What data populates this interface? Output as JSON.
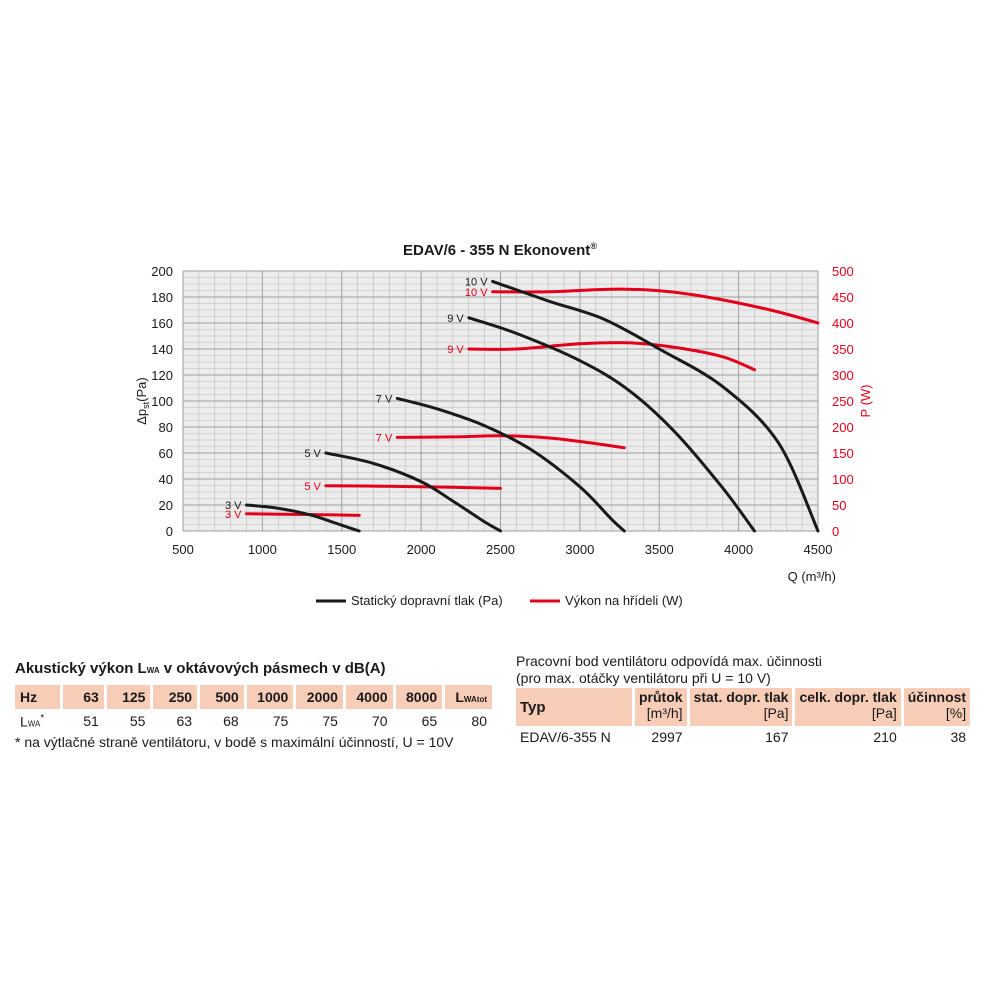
{
  "chart_data": {
    "type": "line",
    "title": "EDAV/6 - 355 N Ekonovent",
    "title_mark": "®",
    "xlabel": "Q (m³/h)",
    "ylabel_left": "Δp",
    "ylabel_left_sub": "st",
    "ylabel_left_unit": "(Pa)",
    "ylabel_right": "P (W)",
    "xlim": [
      500,
      4500
    ],
    "ylim_left": [
      0,
      200
    ],
    "ylim_right": [
      0,
      500
    ],
    "x_ticks": [
      500,
      1000,
      1500,
      2000,
      2500,
      3000,
      3500,
      4000,
      4500
    ],
    "y_left_ticks": [
      0,
      20,
      40,
      60,
      80,
      100,
      120,
      140,
      160,
      180,
      200
    ],
    "y_right_ticks": [
      0,
      50,
      100,
      150,
      200,
      250,
      300,
      350,
      400,
      450,
      500
    ],
    "grid": true,
    "legend_position": "bottom",
    "legend": [
      {
        "label": "Statický dopravní tlak (Pa)",
        "color": "#1a1a1a"
      },
      {
        "label": "Výkon na hřídeli (W)",
        "color": "#e3001b"
      }
    ],
    "pressure_series": [
      {
        "label": "3 V",
        "axis": "left",
        "x": [
          900,
          1100,
          1300,
          1450,
          1560,
          1610
        ],
        "y": [
          20,
          17.5,
          12.5,
          6.5,
          2,
          0
        ]
      },
      {
        "label": "5 V",
        "axis": "left",
        "x": [
          1400,
          1700,
          2000,
          2200,
          2400,
          2500
        ],
        "y": [
          60,
          52,
          38,
          23,
          7,
          0
        ]
      },
      {
        "label": "7 V",
        "axis": "left",
        "x": [
          1850,
          2100,
          2400,
          2700,
          3000,
          3200,
          3280
        ],
        "y": [
          102,
          94,
          81,
          62,
          34,
          9,
          0
        ]
      },
      {
        "label": "9 V",
        "axis": "left",
        "x": [
          2300,
          2600,
          3000,
          3300,
          3600,
          3900,
          4100
        ],
        "y": [
          164,
          152,
          131,
          109,
          76,
          33,
          0
        ]
      },
      {
        "label": "10 V",
        "axis": "left",
        "x": [
          2450,
          2800,
          3150,
          3500,
          3900,
          4250,
          4500
        ],
        "y": [
          192,
          177,
          163,
          140,
          111,
          68,
          0
        ]
      }
    ],
    "power_series": [
      {
        "label": "3 V",
        "axis": "right",
        "x": [
          900,
          1200,
          1450,
          1610
        ],
        "y": [
          33,
          32,
          31,
          30
        ]
      },
      {
        "label": "5 V",
        "axis": "right",
        "x": [
          1400,
          1800,
          2200,
          2500
        ],
        "y": [
          87,
          86,
          84,
          82
        ]
      },
      {
        "label": "7 V",
        "axis": "right",
        "x": [
          1850,
          2200,
          2500,
          2800,
          3100,
          3280
        ],
        "y": [
          180,
          181,
          183,
          179,
          168,
          160
        ]
      },
      {
        "label": "9 V",
        "axis": "right",
        "x": [
          2300,
          2600,
          3000,
          3300,
          3600,
          3900,
          4100
        ],
        "y": [
          350,
          350,
          360,
          362,
          353,
          335,
          310
        ]
      },
      {
        "label": "10 V",
        "axis": "right",
        "x": [
          2450,
          2800,
          3200,
          3500,
          3800,
          4200,
          4500
        ],
        "y": [
          460,
          460,
          465,
          462,
          450,
          425,
          400
        ]
      }
    ],
    "colors": {
      "pressure": "#1a1a1a",
      "power": "#e3001b",
      "grid": "#bdbdbd",
      "plot_bg": "#ececec"
    }
  },
  "acoustic": {
    "title_pre": "Akustický výkon L",
    "title_sub": "WA",
    "title_post": " v oktávových pásmech v dB(A)",
    "header_label": "Hz",
    "bands": [
      "63",
      "125",
      "250",
      "500",
      "1000",
      "2000",
      "4000",
      "8000"
    ],
    "total_label": "L",
    "total_sub": "WAtot",
    "row_label": "L",
    "row_label_sub": "WA",
    "row_label_mark": "*",
    "values": [
      "51",
      "55",
      "63",
      "68",
      "75",
      "75",
      "70",
      "65"
    ],
    "total_value": "80",
    "note": "* na výtlačné straně ventilátoru, v bodě s maximální účinností, U = 10V"
  },
  "operating_point": {
    "caption_line1": "Pracovní bod ventilátoru odpovídá max. účinnosti",
    "caption_line2": "(pro max. otáčky ventilátoru při U = 10 V)",
    "col_typ": "Typ",
    "columns": [
      {
        "name": "průtok",
        "unit": "[m³/h]"
      },
      {
        "name": "stat. dopr. tlak",
        "unit": "[Pa]"
      },
      {
        "name": "celk. dopr. tlak",
        "unit": "[Pa]"
      },
      {
        "name": "účinnost",
        "unit": "[%]"
      }
    ],
    "row": {
      "typ": "EDAV/6-355 N",
      "values": [
        "2997",
        "167",
        "210",
        "38"
      ]
    }
  }
}
